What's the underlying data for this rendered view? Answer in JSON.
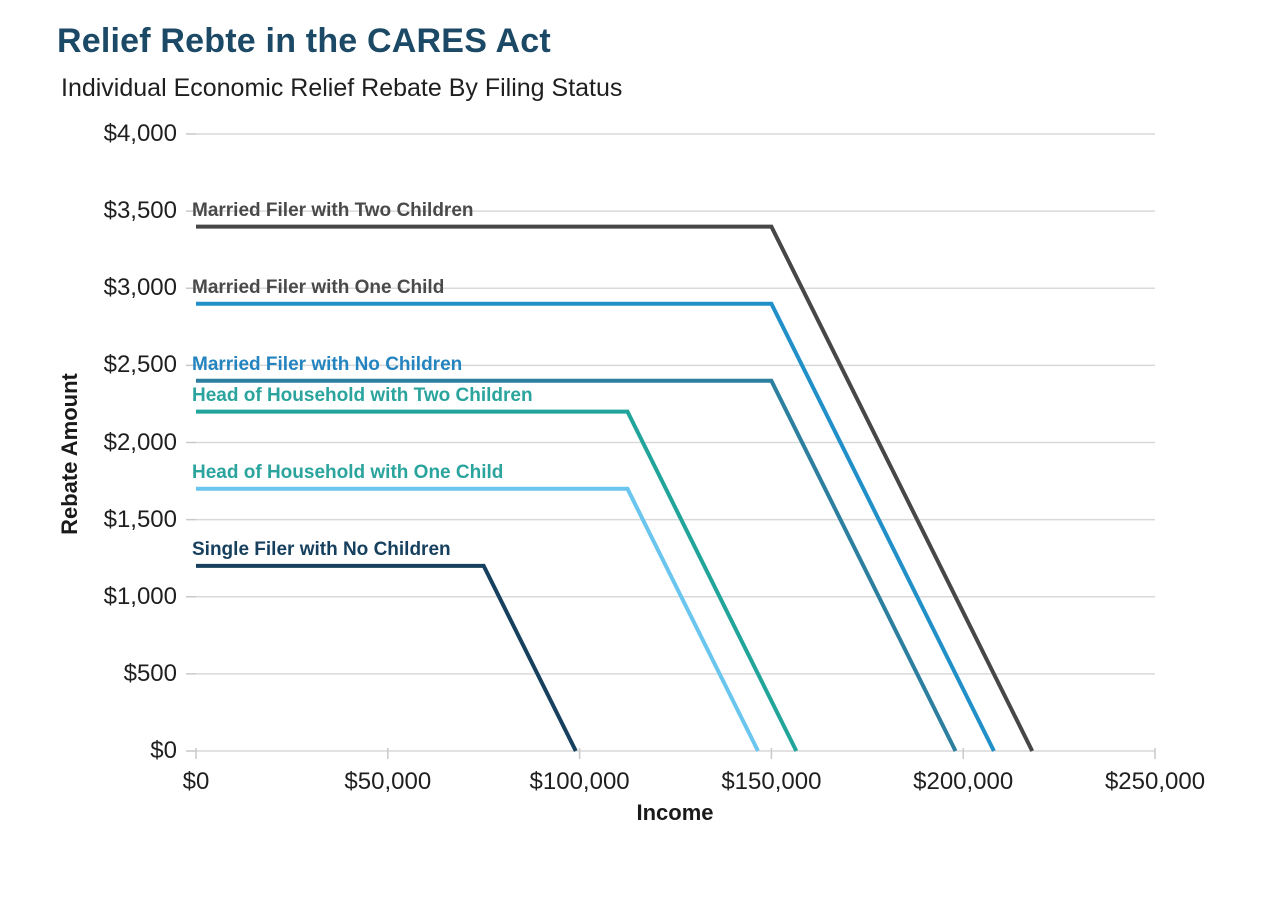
{
  "header": {
    "title": "Relief Rebte in the CARES Act",
    "subtitle": "Individual Economic Relief Rebate By Filing Status"
  },
  "chart_data": {
    "type": "line",
    "title": "Relief Rebte in the CARES Act",
    "subtitle": "Individual Economic Relief Rebate By Filing Status",
    "xlabel": "Income",
    "ylabel": "Rebate Amount",
    "xlim": [
      0,
      250000
    ],
    "ylim": [
      0,
      4000
    ],
    "x_ticks": [
      0,
      50000,
      100000,
      150000,
      200000,
      250000
    ],
    "x_tick_labels": [
      "$0",
      "$50,000",
      "$100,000",
      "$150,000",
      "$200,000",
      "$250,000"
    ],
    "y_ticks": [
      0,
      500,
      1000,
      1500,
      2000,
      2500,
      3000,
      3500,
      4000
    ],
    "y_tick_labels": [
      "$0",
      "$500",
      "$1,000",
      "$1,500",
      "$2,000",
      "$2,500",
      "$3,000",
      "$3,500",
      "$4,000"
    ],
    "grid": "horizontal",
    "gridline_color": "#d9d9d9",
    "tick_color": "#c9c9c9",
    "background_color": "#ffffff",
    "legend_position": "inline-labels",
    "series": [
      {
        "name": "Single Filer with No Children",
        "color": "#16405e",
        "label_color": "#16405e",
        "points": [
          [
            0,
            1200
          ],
          [
            75000,
            1200
          ],
          [
            99000,
            0
          ]
        ]
      },
      {
        "name": "Head of Household with One Child",
        "color": "#6ac6ee",
        "label_color": "#2aa49d",
        "points": [
          [
            0,
            1700
          ],
          [
            112500,
            1700
          ],
          [
            146500,
            0
          ]
        ]
      },
      {
        "name": "Head of Household with Two Children",
        "color": "#21a49a",
        "label_color": "#2aa49d",
        "points": [
          [
            0,
            2200
          ],
          [
            112500,
            2200
          ],
          [
            156500,
            0
          ]
        ]
      },
      {
        "name": "Married Filer with No Children",
        "color": "#2c7f9e",
        "label_color": "#2484c0",
        "points": [
          [
            0,
            2400
          ],
          [
            150000,
            2400
          ],
          [
            198000,
            0
          ]
        ]
      },
      {
        "name": "Married Filer with One Child",
        "color": "#2190c8",
        "label_color": "#4a4a4a",
        "points": [
          [
            0,
            2900
          ],
          [
            150000,
            2900
          ],
          [
            208000,
            0
          ]
        ]
      },
      {
        "name": "Married Filer with Two Children",
        "color": "#474747",
        "label_color": "#4a4a4a",
        "points": [
          [
            0,
            3400
          ],
          [
            150000,
            3400
          ],
          [
            218000,
            0
          ]
        ]
      }
    ]
  }
}
